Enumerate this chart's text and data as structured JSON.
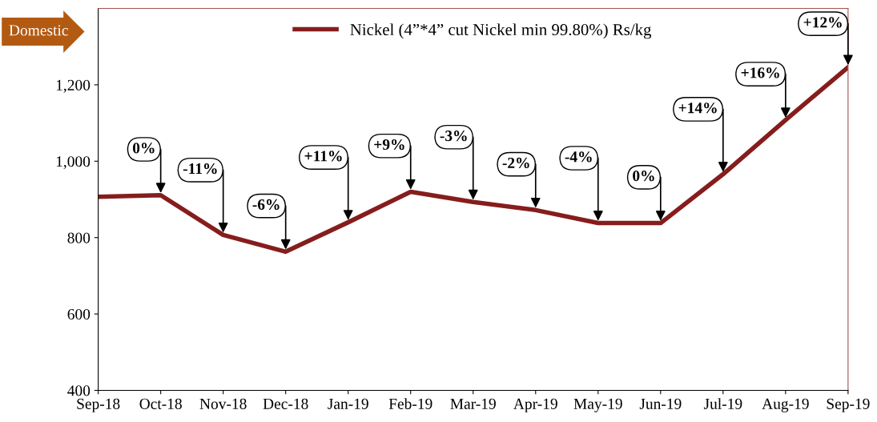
{
  "chart_data": {
    "type": "line",
    "categories": [
      "Sep-18",
      "Oct-18",
      "Nov-18",
      "Dec-18",
      "Jan-19",
      "Feb-19",
      "Mar-19",
      "Apr-19",
      "May-19",
      "Jun-19",
      "Jul-19",
      "Aug-19",
      "Sep-19"
    ],
    "series": [
      {
        "name": "Nickel (4”*4” cut Nickel min 99.80%) Rs/kg",
        "color": "#861d1d",
        "values": [
          907,
          911,
          807,
          763,
          840,
          920,
          893,
          872,
          838,
          838,
          966,
          1108,
          1246
        ]
      }
    ],
    "ylim": [
      400,
      1400
    ],
    "yticks": [
      {
        "value": 400,
        "label": "400"
      },
      {
        "value": 600,
        "label": "600"
      },
      {
        "value": 800,
        "label": "800"
      },
      {
        "value": 1000,
        "label": "1,000"
      },
      {
        "value": 1200,
        "label": "1,200"
      }
    ],
    "grid": false,
    "legend": "top",
    "marker": "none",
    "line_style": "solid",
    "annotations": [
      "Domestic",
      {
        "text": "0%",
        "x": "Oct-18",
        "y": 911
      },
      {
        "text": "-11%",
        "x": "Nov-18",
        "y": 807
      },
      {
        "text": "-6%",
        "x": "Dec-18",
        "y": 763
      },
      {
        "text": "+11%",
        "x": "Jan-19",
        "y": 840
      },
      {
        "text": "+9%",
        "x": "Feb-19",
        "y": 920
      },
      {
        "text": "-3%",
        "x": "Mar-19",
        "y": 893
      },
      {
        "text": "-2%",
        "x": "Apr-19",
        "y": 872
      },
      {
        "text": "-4%",
        "x": "May-19",
        "y": 838
      },
      {
        "text": "0%",
        "x": "Jun-19",
        "y": 838
      },
      {
        "text": "+14%",
        "x": "Jul-19",
        "y": 966
      },
      {
        "text": "+16%",
        "x": "Aug-19",
        "y": 1108
      },
      {
        "text": "+12%",
        "x": "Sep-19",
        "y": 1246
      }
    ]
  }
}
